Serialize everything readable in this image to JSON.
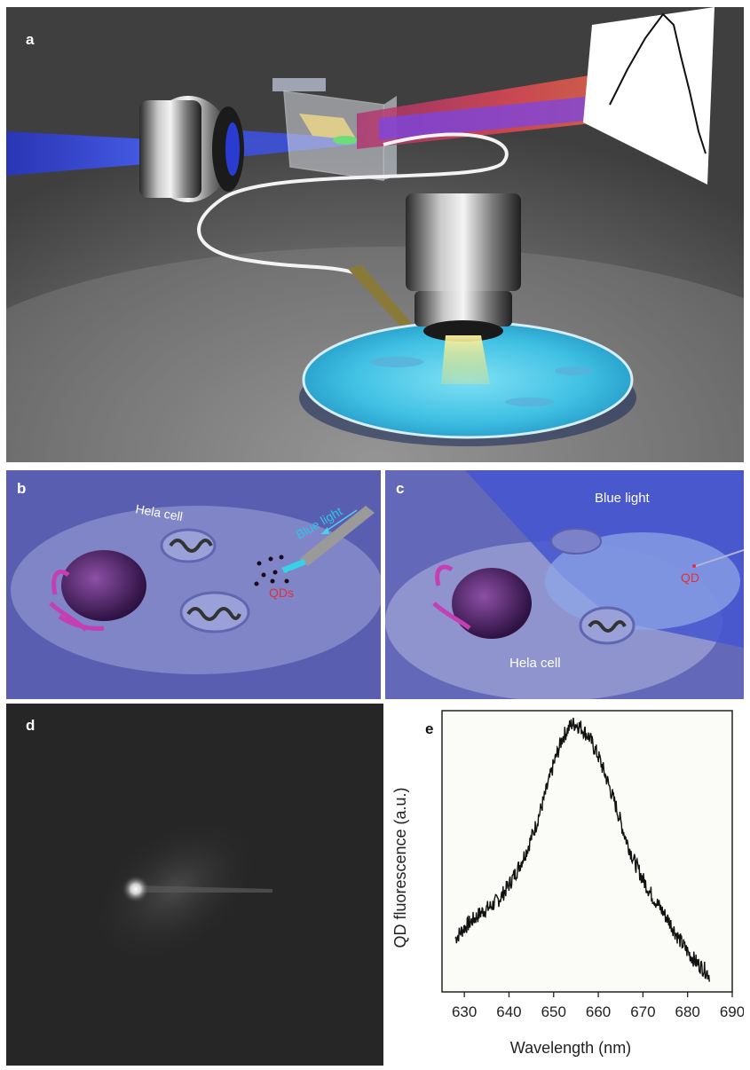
{
  "panels": {
    "a": {
      "label": "a"
    },
    "b": {
      "label": "b",
      "cell_label": "Hela cell",
      "light_label": "Blue light",
      "particles_label": "QDs"
    },
    "c": {
      "label": "c",
      "light_label": "Blue light",
      "particle_label": "QD",
      "cell_label": "Hela cell"
    },
    "d": {
      "label": "d"
    },
    "e": {
      "label": "e"
    }
  },
  "colors": {
    "beam_blue": "#3a4fd8",
    "dish_cyan": "#3fc6e6",
    "cell_purple": "#7b74c9",
    "qd_red": "#e0303a",
    "text_blue": "#2ec4e8"
  },
  "chart_data": {
    "type": "line",
    "title": "",
    "xlabel": "Wavelength (nm)",
    "ylabel": "QD fluorescence (a.u.)",
    "xlim": [
      625,
      690
    ],
    "ylim": [
      0,
      1.05
    ],
    "xticks": [
      630,
      640,
      650,
      660,
      670,
      680,
      690
    ],
    "grid": false,
    "series": [
      {
        "x": [
          628,
          630,
          632,
          634,
          636,
          638,
          640,
          642,
          644,
          646,
          648,
          650,
          652,
          654,
          655,
          656,
          658,
          660,
          662,
          664,
          666,
          668,
          670,
          672,
          674,
          676,
          678,
          680,
          682,
          684,
          685
        ],
        "values": [
          0.2,
          0.24,
          0.27,
          0.3,
          0.32,
          0.35,
          0.4,
          0.46,
          0.53,
          0.62,
          0.73,
          0.85,
          0.95,
          1.0,
          1.0,
          0.99,
          0.95,
          0.88,
          0.79,
          0.69,
          0.58,
          0.49,
          0.42,
          0.36,
          0.31,
          0.26,
          0.2,
          0.15,
          0.11,
          0.08,
          0.06
        ]
      }
    ]
  }
}
